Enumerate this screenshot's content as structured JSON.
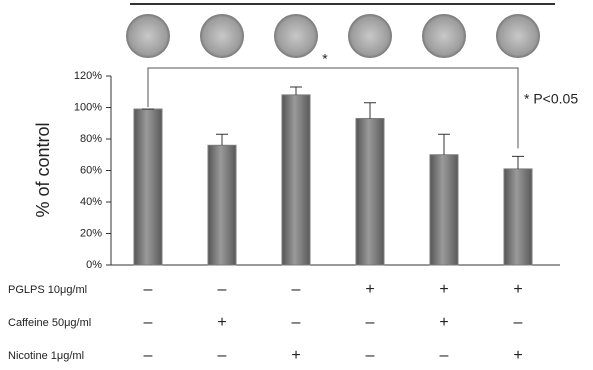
{
  "chart_data": {
    "type": "bar",
    "y_label": "% of control",
    "values": [
      99,
      76,
      108,
      93,
      70,
      61
    ],
    "errors": [
      0,
      7,
      5,
      10,
      13,
      8
    ],
    "color": "#7a7a7a",
    "ylim": [
      0,
      120
    ],
    "yticks": [
      {
        "value": 0,
        "label": "0%"
      },
      {
        "value": 20,
        "label": "20%"
      },
      {
        "value": 40,
        "label": "40%"
      },
      {
        "value": 60,
        "label": "60%"
      },
      {
        "value": 80,
        "label": "80%"
      },
      {
        "value": 100,
        "label": "100%"
      },
      {
        "value": 120,
        "label": "120%"
      }
    ],
    "significance_mark": "*",
    "significance_note": "* P<0.05",
    "treatments": [
      {
        "label": "PGLPS 10μg/ml",
        "signs": [
          "–",
          "–",
          "–",
          "+",
          "+",
          "+"
        ]
      },
      {
        "label": "Caffeine 50μg/ml",
        "signs": [
          "–",
          "+",
          "–",
          "–",
          "+",
          "–"
        ]
      },
      {
        "label": "Nicotine 1μg/ml",
        "signs": [
          "–",
          "–",
          "+",
          "–",
          "–",
          "+"
        ]
      }
    ]
  }
}
